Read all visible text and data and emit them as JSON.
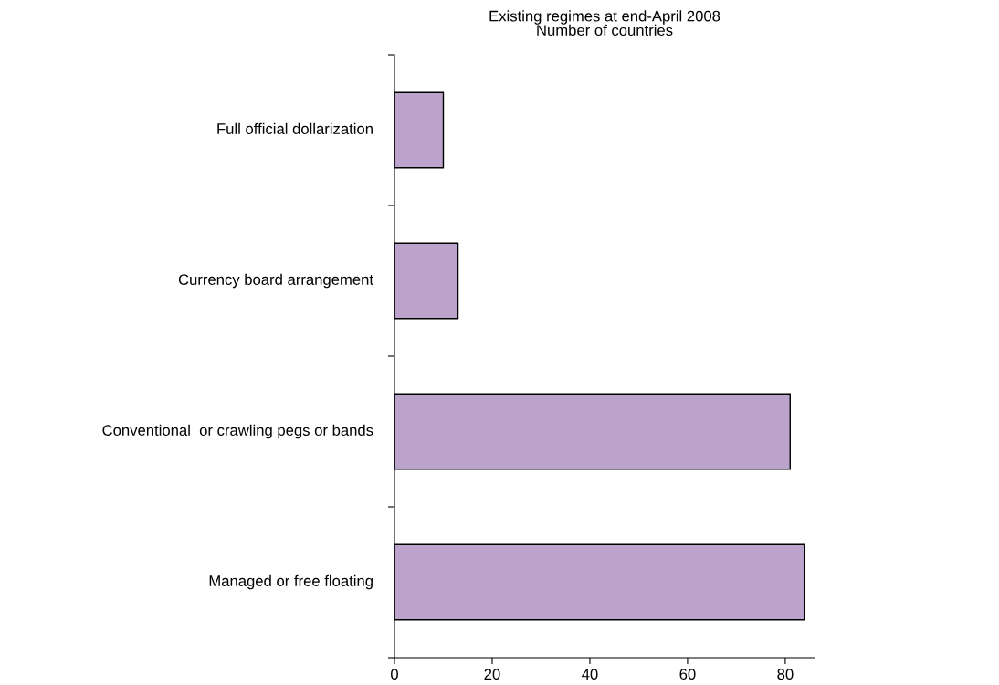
{
  "chart_data": {
    "type": "bar",
    "orientation": "horizontal",
    "title": "Existing regimes at end-April 2008\nNumber of countries",
    "categories": [
      "Full official dollarization",
      "Currency board arrangement",
      "Conventional  or crawling pegs or bands",
      "Managed or free floating"
    ],
    "values": [
      10,
      13,
      81,
      84
    ],
    "color": "#bba3cb",
    "xlim": [
      0,
      86
    ],
    "xticks": [
      0,
      20,
      40,
      60,
      80
    ],
    "grid": false
  }
}
